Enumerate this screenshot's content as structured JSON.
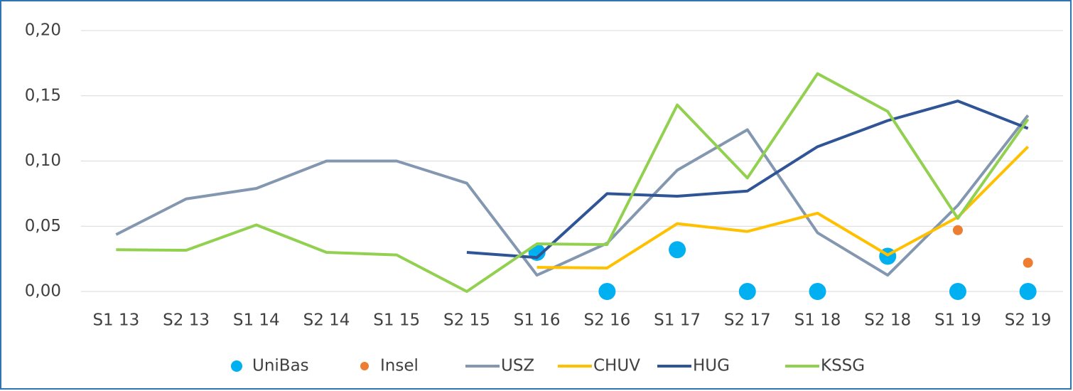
{
  "chart_data": {
    "type": "line",
    "categories": [
      "S1 13",
      "S2 13",
      "S1 14",
      "S2 14",
      "S1 15",
      "S2 15",
      "S1 16",
      "S2 16",
      "S1 17",
      "S2 17",
      "S1 18",
      "S2 18",
      "S1 19",
      "S2 19"
    ],
    "ylim": [
      0,
      0.2
    ],
    "yticks": [
      {
        "value": 0,
        "label": "0,00"
      },
      {
        "value": 0.05,
        "label": "0,05"
      },
      {
        "value": 0.1,
        "label": "0,10"
      },
      {
        "value": 0.15,
        "label": "0,15"
      },
      {
        "value": 0.2,
        "label": "0,20"
      }
    ],
    "grid": true,
    "legend": "bottom",
    "series": [
      {
        "name": "UniBas",
        "color": "#00b0f0",
        "mode": "markers",
        "values": [
          null,
          null,
          null,
          null,
          null,
          null,
          0.03,
          0,
          0.032,
          0,
          0,
          0.027,
          0,
          0
        ]
      },
      {
        "name": "Insel",
        "color": "#ed7d31",
        "mode": "markers",
        "values": [
          null,
          null,
          null,
          null,
          null,
          null,
          null,
          null,
          null,
          null,
          null,
          null,
          0.047,
          0.022
        ]
      },
      {
        "name": "USZ",
        "color": "#8497b0",
        "mode": "lines",
        "values": [
          0.0436,
          0.071,
          0.079,
          0.1,
          0.1,
          0.083,
          0.0125,
          0.037,
          0.093,
          0.124,
          0.045,
          0.0125,
          0.066,
          0.135
        ]
      },
      {
        "name": "CHUV",
        "color": "#ffc000",
        "mode": "lines",
        "values": [
          null,
          null,
          null,
          null,
          null,
          null,
          0.0185,
          0.018,
          0.052,
          0.046,
          0.06,
          0.028,
          0.057,
          0.111
        ]
      },
      {
        "name": "HUG",
        "color": "#2f5597",
        "mode": "lines",
        "values": [
          null,
          null,
          null,
          null,
          null,
          0.03,
          0.026,
          0.075,
          0.073,
          0.077,
          0.111,
          0.131,
          0.146,
          0.125
        ]
      },
      {
        "name": "KSSG",
        "color": "#92d050",
        "mode": "lines",
        "values": [
          0.032,
          0.0316,
          0.051,
          0.03,
          0.028,
          0,
          0.0365,
          0.036,
          0.143,
          0.087,
          0.167,
          0.138,
          0.056,
          0.132
        ]
      }
    ]
  }
}
